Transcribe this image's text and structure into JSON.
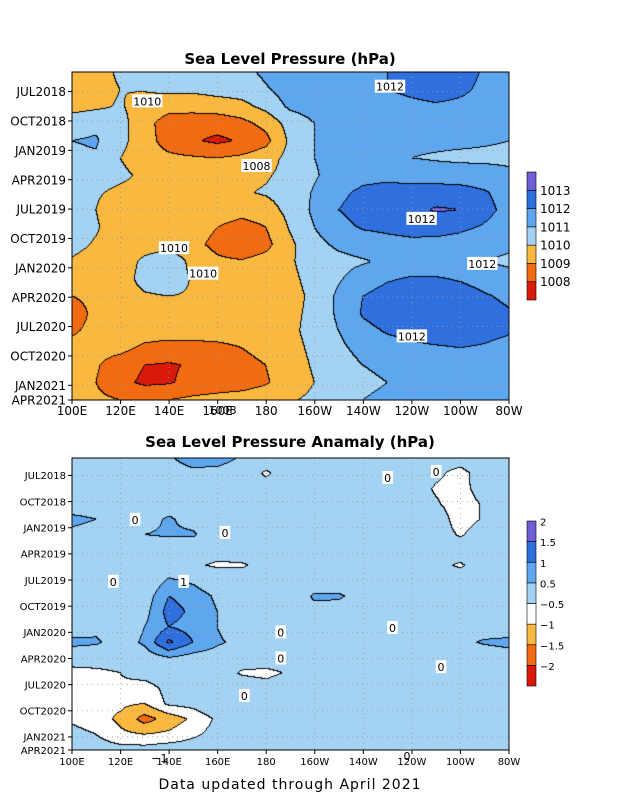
{
  "footer": "Data updated through April 2021",
  "colors": {
    "frame": "#000000",
    "grid": "#9a9a9a",
    "label_bg": "#ffffff"
  },
  "chart_data": [
    {
      "type": "heatmap",
      "title": "Sea Level Pressure (hPa)",
      "xlabel": "",
      "ylabel": "",
      "x_ticks": [
        "100E",
        "120E",
        "140E",
        "160E",
        "180",
        "160W",
        "140W",
        "120W",
        "100W",
        "80W"
      ],
      "x_values": [
        100,
        120,
        140,
        160,
        180,
        200,
        220,
        240,
        260,
        280
      ],
      "y_ticks": [
        "JUL2018",
        "OCT2018",
        "JAN2019",
        "APR2019",
        "JUL2019",
        "OCT2019",
        "JAN2020",
        "APR2020",
        "JUL2020",
        "OCT2020",
        "JAN2021",
        "APR2021"
      ],
      "xlim": [
        100,
        280
      ],
      "ylim": [
        "APR2021",
        "MAY2018"
      ],
      "grid": true,
      "legend": "colorbar-right",
      "colorbar": {
        "levels": [
          "1008",
          "1009",
          "1010",
          "1011",
          "1012",
          "1013"
        ],
        "colors": [
          "#d91a0a",
          "#f26b10",
          "#f9b840",
          "#a3d2f3",
          "#5ea7ef",
          "#2f6fde",
          "#6e5fd6"
        ]
      },
      "contour_labels": [
        {
          "text": "1010",
          "lon": 131,
          "month": 3.0
        },
        {
          "text": "1012",
          "lon": 231,
          "month": 1.5
        },
        {
          "text": "1008",
          "lon": 176,
          "month": 9.6
        },
        {
          "text": "1012",
          "lon": 244,
          "month": 15.0
        },
        {
          "text": "1010",
          "lon": 142,
          "month": 18.0
        },
        {
          "text": "1012",
          "lon": 269,
          "month": 19.6
        },
        {
          "text": "1010",
          "lon": 154,
          "month": 20.6
        },
        {
          "text": "1012",
          "lon": 240,
          "month": 27.0
        },
        {
          "text": "1008",
          "lon": 162,
          "month": 34.5
        }
      ],
      "rows": [
        [
          1009.2,
          1009.5,
          1010.2,
          1010.4,
          1010.6,
          1010.5,
          1010.6,
          1010.7,
          1011.2,
          1011.7,
          1012.0,
          1012.0,
          1012.0,
          1012.0,
          1012.2,
          1012.8,
          1012.4,
          1011.9,
          1011.4
        ],
        [
          1009.4,
          1009.6,
          1010.0,
          1010.1,
          1010.3,
          1010.2,
          1010.4,
          1010.5,
          1010.9,
          1011.5,
          1011.7,
          1011.8,
          1011.9,
          1012.0,
          1012.2,
          1012.4,
          1012.2,
          1011.8,
          1011.5
        ],
        [
          1009.6,
          1009.8,
          1010.1,
          1009.5,
          1009.3,
          1009.4,
          1009.5,
          1009.7,
          1010.3,
          1011.2,
          1011.4,
          1011.5,
          1011.6,
          1011.7,
          1011.8,
          1011.9,
          1011.8,
          1011.6,
          1011.4
        ],
        [
          1010.6,
          1010.8,
          1010.4,
          1009.3,
          1008.6,
          1008.4,
          1008.4,
          1008.7,
          1009.3,
          1010.4,
          1011.0,
          1011.2,
          1011.3,
          1011.4,
          1011.4,
          1011.5,
          1011.5,
          1011.3,
          1011.2
        ],
        [
          1011.0,
          1011.1,
          1010.3,
          1009.4,
          1008.6,
          1008.1,
          1007.8,
          1008.1,
          1008.7,
          1010.2,
          1011.0,
          1011.2,
          1011.2,
          1011.3,
          1011.2,
          1011.2,
          1011.2,
          1011.1,
          1011.0
        ],
        [
          1010.8,
          1010.9,
          1010.0,
          1009.5,
          1009.2,
          1009.1,
          1009.0,
          1009.2,
          1009.6,
          1010.3,
          1011.0,
          1011.3,
          1011.3,
          1011.2,
          1011.0,
          1010.9,
          1010.8,
          1010.8,
          1010.8
        ],
        [
          1010.4,
          1010.4,
          1010.2,
          1009.8,
          1009.7,
          1009.6,
          1009.6,
          1009.7,
          1009.9,
          1010.3,
          1010.9,
          1011.4,
          1011.7,
          1011.8,
          1011.6,
          1011.5,
          1011.5,
          1011.4,
          1011.2
        ],
        [
          1010.3,
          1010.1,
          1009.8,
          1009.7,
          1009.6,
          1009.7,
          1009.8,
          1009.9,
          1010.1,
          1010.4,
          1011.1,
          1011.8,
          1012.2,
          1012.3,
          1012.4,
          1012.5,
          1012.4,
          1012.1,
          1011.6
        ],
        [
          1010.4,
          1010.0,
          1009.4,
          1009.4,
          1009.6,
          1009.7,
          1009.6,
          1009.4,
          1009.6,
          1010.3,
          1011.2,
          1012.0,
          1012.4,
          1012.5,
          1012.7,
          1013.1,
          1013.0,
          1012.3,
          1011.7
        ],
        [
          1010.4,
          1010.1,
          1009.5,
          1009.6,
          1009.7,
          1009.5,
          1009.0,
          1008.6,
          1009.0,
          1010.1,
          1011.0,
          1011.7,
          1012.1,
          1012.2,
          1012.3,
          1012.4,
          1012.2,
          1011.9,
          1011.5
        ],
        [
          1010.3,
          1009.9,
          1009.5,
          1009.6,
          1009.6,
          1009.3,
          1008.7,
          1008.2,
          1008.7,
          1009.8,
          1010.7,
          1011.2,
          1011.5,
          1011.7,
          1011.8,
          1011.7,
          1011.6,
          1011.4,
          1011.2
        ],
        [
          1009.9,
          1009.6,
          1009.5,
          1010.2,
          1010.7,
          1009.7,
          1009.2,
          1009.1,
          1009.4,
          1009.9,
          1010.4,
          1010.7,
          1010.9,
          1011.2,
          1011.4,
          1011.3,
          1011.2,
          1011.0,
          1010.8
        ],
        [
          1009.5,
          1009.4,
          1009.6,
          1010.3,
          1010.6,
          1009.9,
          1009.6,
          1009.5,
          1009.6,
          1009.8,
          1010.3,
          1010.9,
          1011.5,
          1011.9,
          1012.1,
          1012.1,
          1011.9,
          1011.6,
          1011.4
        ],
        [
          1009.0,
          1009.2,
          1009.6,
          1009.9,
          1010.0,
          1009.9,
          1009.7,
          1009.6,
          1009.6,
          1009.7,
          1010.2,
          1011.2,
          1012.0,
          1012.4,
          1012.6,
          1012.7,
          1012.5,
          1012.1,
          1011.8
        ],
        [
          1008.6,
          1009.2,
          1009.6,
          1009.7,
          1009.8,
          1009.7,
          1009.6,
          1009.5,
          1009.5,
          1009.8,
          1010.2,
          1011.2,
          1012.1,
          1012.5,
          1012.7,
          1012.8,
          1012.7,
          1012.4,
          1012.1
        ],
        [
          1008.9,
          1009.2,
          1009.6,
          1009.5,
          1009.5,
          1009.4,
          1009.4,
          1009.4,
          1009.5,
          1009.8,
          1010.3,
          1011.0,
          1011.7,
          1012.1,
          1012.3,
          1012.5,
          1012.5,
          1012.3,
          1012.1
        ],
        [
          1009.2,
          1009.3,
          1009.3,
          1008.8,
          1008.6,
          1008.7,
          1008.8,
          1009.0,
          1009.3,
          1009.7,
          1010.2,
          1010.8,
          1011.3,
          1011.6,
          1011.8,
          1011.9,
          1012.0,
          1011.9,
          1011.7
        ],
        [
          1009.4,
          1009.1,
          1008.5,
          1008.0,
          1007.9,
          1008.1,
          1008.4,
          1008.7,
          1009.0,
          1009.6,
          1010.1,
          1010.6,
          1011.0,
          1011.2,
          1011.3,
          1011.4,
          1011.5,
          1011.5,
          1011.4
        ],
        [
          1009.3,
          1009.0,
          1008.3,
          1007.8,
          1007.9,
          1008.3,
          1008.5,
          1008.6,
          1008.9,
          1009.5,
          1010.0,
          1010.5,
          1010.8,
          1011.0,
          1011.1,
          1011.1,
          1011.2,
          1011.2,
          1011.1
        ],
        [
          1009.3,
          1009.2,
          1009.0,
          1008.9,
          1009.0,
          1009.2,
          1009.3,
          1009.4,
          1009.6,
          1009.9,
          1010.2,
          1010.6,
          1011.0,
          1011.2,
          1011.3,
          1011.3,
          1011.3,
          1011.2,
          1011.0
        ]
      ]
    },
    {
      "type": "heatmap",
      "title": "Sea Level Pressure Anamaly (hPa)",
      "xlabel": "",
      "ylabel": "",
      "x_ticks": [
        "100E",
        "120E",
        "140E",
        "160E",
        "180",
        "160W",
        "140W",
        "120W",
        "100W",
        "80W"
      ],
      "x_values": [
        100,
        120,
        140,
        160,
        180,
        200,
        220,
        240,
        260,
        280
      ],
      "y_ticks": [
        "JUL2018",
        "OCT2018",
        "JAN2019",
        "APR2019",
        "JUL2019",
        "OCT2019",
        "JAN2020",
        "APR2020",
        "JUL2020",
        "OCT2020",
        "JAN2021",
        "APR2021"
      ],
      "xlim": [
        100,
        280
      ],
      "ylim": [
        "APR2021",
        "MAY2018"
      ],
      "grid": true,
      "legend": "colorbar-right",
      "colorbar": {
        "levels": [
          "−2",
          "−1.5",
          "−1",
          "−0.5",
          "0.5",
          "1",
          "1.5",
          "2"
        ],
        "colors": [
          "#d91a0a",
          "#f26b10",
          "#f9b840",
          "#ffffff",
          "#a3d2f3",
          "#5ea7ef",
          "#2f6fde",
          "#6e5fd6"
        ]
      },
      "contour_labels": [
        {
          "text": "0",
          "lon": 230,
          "month": 2.3
        },
        {
          "text": "0",
          "lon": 250,
          "month": 1.6
        },
        {
          "text": "0",
          "lon": 126,
          "month": 7.1
        },
        {
          "text": "0",
          "lon": 163,
          "month": 8.6
        },
        {
          "text": "0",
          "lon": 117,
          "month": 14.2
        },
        {
          "text": "1",
          "lon": 146,
          "month": 14.2
        },
        {
          "text": "0",
          "lon": 232,
          "month": 19.5
        },
        {
          "text": "0",
          "lon": 186,
          "month": 20.0
        },
        {
          "text": "0",
          "lon": 186,
          "month": 23.0
        },
        {
          "text": "0",
          "lon": 252,
          "month": 24.0
        },
        {
          "text": "0",
          "lon": 171,
          "month": 27.3
        },
        {
          "text": "−1",
          "lon": 136,
          "month": 34.4
        },
        {
          "text": "0",
          "lon": 238,
          "month": 34.2
        }
      ],
      "rows": [
        [
          0.0,
          0.0,
          0.0,
          -0.1,
          0.4,
          0.9,
          0.9,
          0.4,
          0.0,
          0.0,
          0.0,
          0.0,
          0.0,
          0.0,
          0.0,
          0.0,
          0.0,
          0.0,
          0.5
        ],
        [
          0.0,
          0.0,
          0.0,
          -0.2,
          0.1,
          0.3,
          0.2,
          0.0,
          -0.6,
          -0.1,
          0.0,
          0.0,
          0.0,
          0.0,
          0.0,
          -0.3,
          -0.8,
          0.0,
          0.0
        ],
        [
          0.1,
          0.0,
          0.0,
          0.0,
          0.0,
          0.0,
          0.0,
          -0.2,
          -0.2,
          0.0,
          0.0,
          0.0,
          0.0,
          0.0,
          0.0,
          -0.6,
          -0.8,
          -0.1,
          0.0
        ],
        [
          0.0,
          0.0,
          0.0,
          0.1,
          0.1,
          0.0,
          0.0,
          0.0,
          0.0,
          0.0,
          0.0,
          0.0,
          0.0,
          0.0,
          0.0,
          -0.4,
          -0.9,
          -0.4,
          0.0
        ],
        [
          0.7,
          0.5,
          0.0,
          0.2,
          0.6,
          0.2,
          0.0,
          0.0,
          0.0,
          0.0,
          0.4,
          0.0,
          0.0,
          0.0,
          0.0,
          0.0,
          -0.9,
          -0.4,
          0.0
        ],
        [
          0.3,
          0.2,
          0.0,
          0.5,
          0.6,
          0.6,
          0.0,
          0.0,
          0.0,
          0.0,
          0.0,
          0.0,
          0.0,
          0.0,
          0.0,
          0.0,
          -0.6,
          0.0,
          0.0
        ],
        [
          0.0,
          0.0,
          0.0,
          0.0,
          0.0,
          0.0,
          -0.2,
          0.0,
          -0.2,
          0.0,
          0.0,
          0.0,
          0.0,
          0.0,
          0.0,
          -0.4,
          0.0,
          0.0,
          0.0
        ],
        [
          0.0,
          0.0,
          0.0,
          -0.1,
          0.0,
          -0.4,
          -0.6,
          -0.6,
          -0.2,
          0.0,
          0.0,
          0.0,
          0.0,
          0.0,
          0.0,
          -0.3,
          -0.6,
          -0.1,
          0.0
        ],
        [
          0.0,
          0.0,
          0.0,
          0.0,
          0.6,
          0.4,
          0.0,
          0.0,
          0.0,
          0.0,
          0.0,
          0.0,
          0.0,
          0.0,
          0.0,
          0.0,
          0.0,
          0.0,
          0.0
        ],
        [
          0.0,
          0.0,
          0.0,
          0.2,
          1.0,
          0.8,
          0.4,
          0.0,
          0.0,
          0.0,
          0.6,
          0.6,
          0.2,
          0.0,
          0.0,
          0.0,
          0.0,
          0.0,
          0.0
        ],
        [
          0.0,
          0.0,
          0.0,
          0.3,
          1.2,
          0.9,
          0.5,
          0.0,
          0.0,
          0.0,
          0.3,
          0.2,
          0.0,
          0.0,
          0.0,
          0.0,
          0.0,
          0.0,
          0.0
        ],
        [
          0.0,
          0.3,
          0.0,
          0.5,
          1.0,
          0.8,
          0.5,
          0.0,
          0.0,
          0.0,
          0.0,
          0.0,
          0.2,
          0.0,
          0.0,
          0.0,
          0.0,
          0.0,
          0.0
        ],
        [
          0.7,
          0.6,
          0.2,
          0.6,
          1.6,
          1.0,
          0.6,
          0.3,
          0.0,
          0.0,
          0.0,
          0.0,
          0.2,
          0.4,
          0.2,
          0.0,
          0.3,
          0.6,
          0.7
        ],
        [
          0.0,
          0.0,
          0.0,
          0.2,
          0.5,
          0.3,
          0.2,
          0.0,
          0.0,
          0.0,
          0.0,
          0.0,
          0.0,
          0.0,
          0.0,
          0.0,
          0.1,
          0.0,
          0.2
        ],
        [
          -0.8,
          -0.7,
          -0.5,
          -0.2,
          0.0,
          0.0,
          0.0,
          -0.6,
          -0.7,
          -0.4,
          -0.1,
          0.0,
          0.0,
          0.0,
          0.0,
          0.0,
          0.0,
          0.0,
          0.0
        ],
        [
          -0.9,
          -0.8,
          -0.6,
          -0.8,
          -0.3,
          0.0,
          0.0,
          0.0,
          -0.2,
          0.0,
          0.0,
          0.0,
          0.0,
          0.0,
          0.0,
          0.0,
          0.0,
          0.0,
          0.0
        ],
        [
          -0.9,
          -0.9,
          -0.9,
          -1.0,
          -0.4,
          -0.3,
          0.0,
          0.0,
          0.0,
          0.0,
          0.0,
          0.0,
          0.0,
          0.0,
          0.0,
          0.0,
          0.0,
          0.0,
          0.0
        ],
        [
          -0.6,
          -0.8,
          -1.1,
          -1.7,
          -1.3,
          -0.9,
          -0.4,
          -0.1,
          0.0,
          0.0,
          0.0,
          0.0,
          0.0,
          0.0,
          0.0,
          0.0,
          0.0,
          0.0,
          0.0
        ],
        [
          -0.3,
          -0.5,
          -0.9,
          -1.0,
          -0.9,
          -0.6,
          -0.3,
          -0.1,
          0.0,
          0.0,
          0.0,
          0.0,
          0.0,
          0.0,
          0.0,
          0.0,
          0.0,
          0.0,
          0.0
        ],
        [
          0.0,
          -0.2,
          -0.3,
          -0.3,
          -0.2,
          -0.2,
          -0.1,
          0.0,
          0.0,
          0.0,
          0.0,
          0.0,
          0.0,
          0.0,
          0.0,
          0.0,
          0.0,
          0.0,
          0.0
        ]
      ]
    }
  ]
}
